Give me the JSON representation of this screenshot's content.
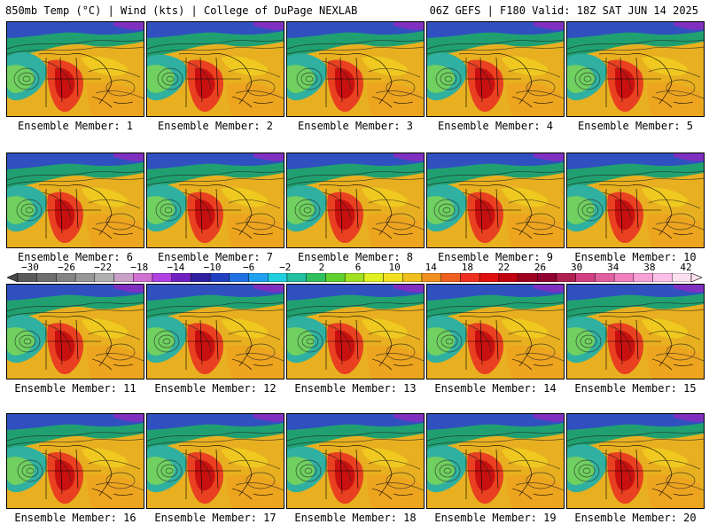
{
  "header": {
    "left": "850mb Temp (°C) | Wind (kts) | College of DuPage NEXLAB",
    "right": "06Z GEFS | F180 Valid: 18Z SAT JUN 14 2025"
  },
  "colorbar": {
    "ticks": [
      "−30",
      "−26",
      "−22",
      "−18",
      "−14",
      "−10",
      "−6",
      "−2",
      "2",
      "6",
      "10",
      "14",
      "18",
      "22",
      "26",
      "30",
      "34",
      "38",
      "42"
    ],
    "colors": [
      "#5a5a5a",
      "#6e6e6e",
      "#838383",
      "#979797",
      "#b0b0b0",
      "#c8a0c8",
      "#d070d0",
      "#b040e0",
      "#7020c0",
      "#3020a0",
      "#2040c0",
      "#2070e0",
      "#20a0f0",
      "#20d0e0",
      "#20c0a0",
      "#30c060",
      "#60d030",
      "#a0e020",
      "#e0f020",
      "#f0e020",
      "#f0c020",
      "#f09020",
      "#f06020",
      "#f03020",
      "#e01010",
      "#c00010",
      "#a00020",
      "#900030",
      "#b02050",
      "#d04080",
      "#e060a0",
      "#f080c0",
      "#f8a0d8",
      "#fcc0e8",
      "#fde0f0"
    ]
  },
  "members": [
    {
      "label": "Ensemble Member: 1"
    },
    {
      "label": "Ensemble Member: 2"
    },
    {
      "label": "Ensemble Member: 3"
    },
    {
      "label": "Ensemble Member: 4"
    },
    {
      "label": "Ensemble Member: 5"
    },
    {
      "label": "Ensemble Member: 6"
    },
    {
      "label": "Ensemble Member: 7"
    },
    {
      "label": "Ensemble Member: 8"
    },
    {
      "label": "Ensemble Member: 9"
    },
    {
      "label": "Ensemble Member: 10"
    },
    {
      "label": "Ensemble Member: 11"
    },
    {
      "label": "Ensemble Member: 12"
    },
    {
      "label": "Ensemble Member: 13"
    },
    {
      "label": "Ensemble Member: 14"
    },
    {
      "label": "Ensemble Member: 15"
    },
    {
      "label": "Ensemble Member: 16"
    },
    {
      "label": "Ensemble Member: 17"
    },
    {
      "label": "Ensemble Member: 18"
    },
    {
      "label": "Ensemble Member: 19"
    },
    {
      "label": "Ensemble Member: 20"
    }
  ]
}
